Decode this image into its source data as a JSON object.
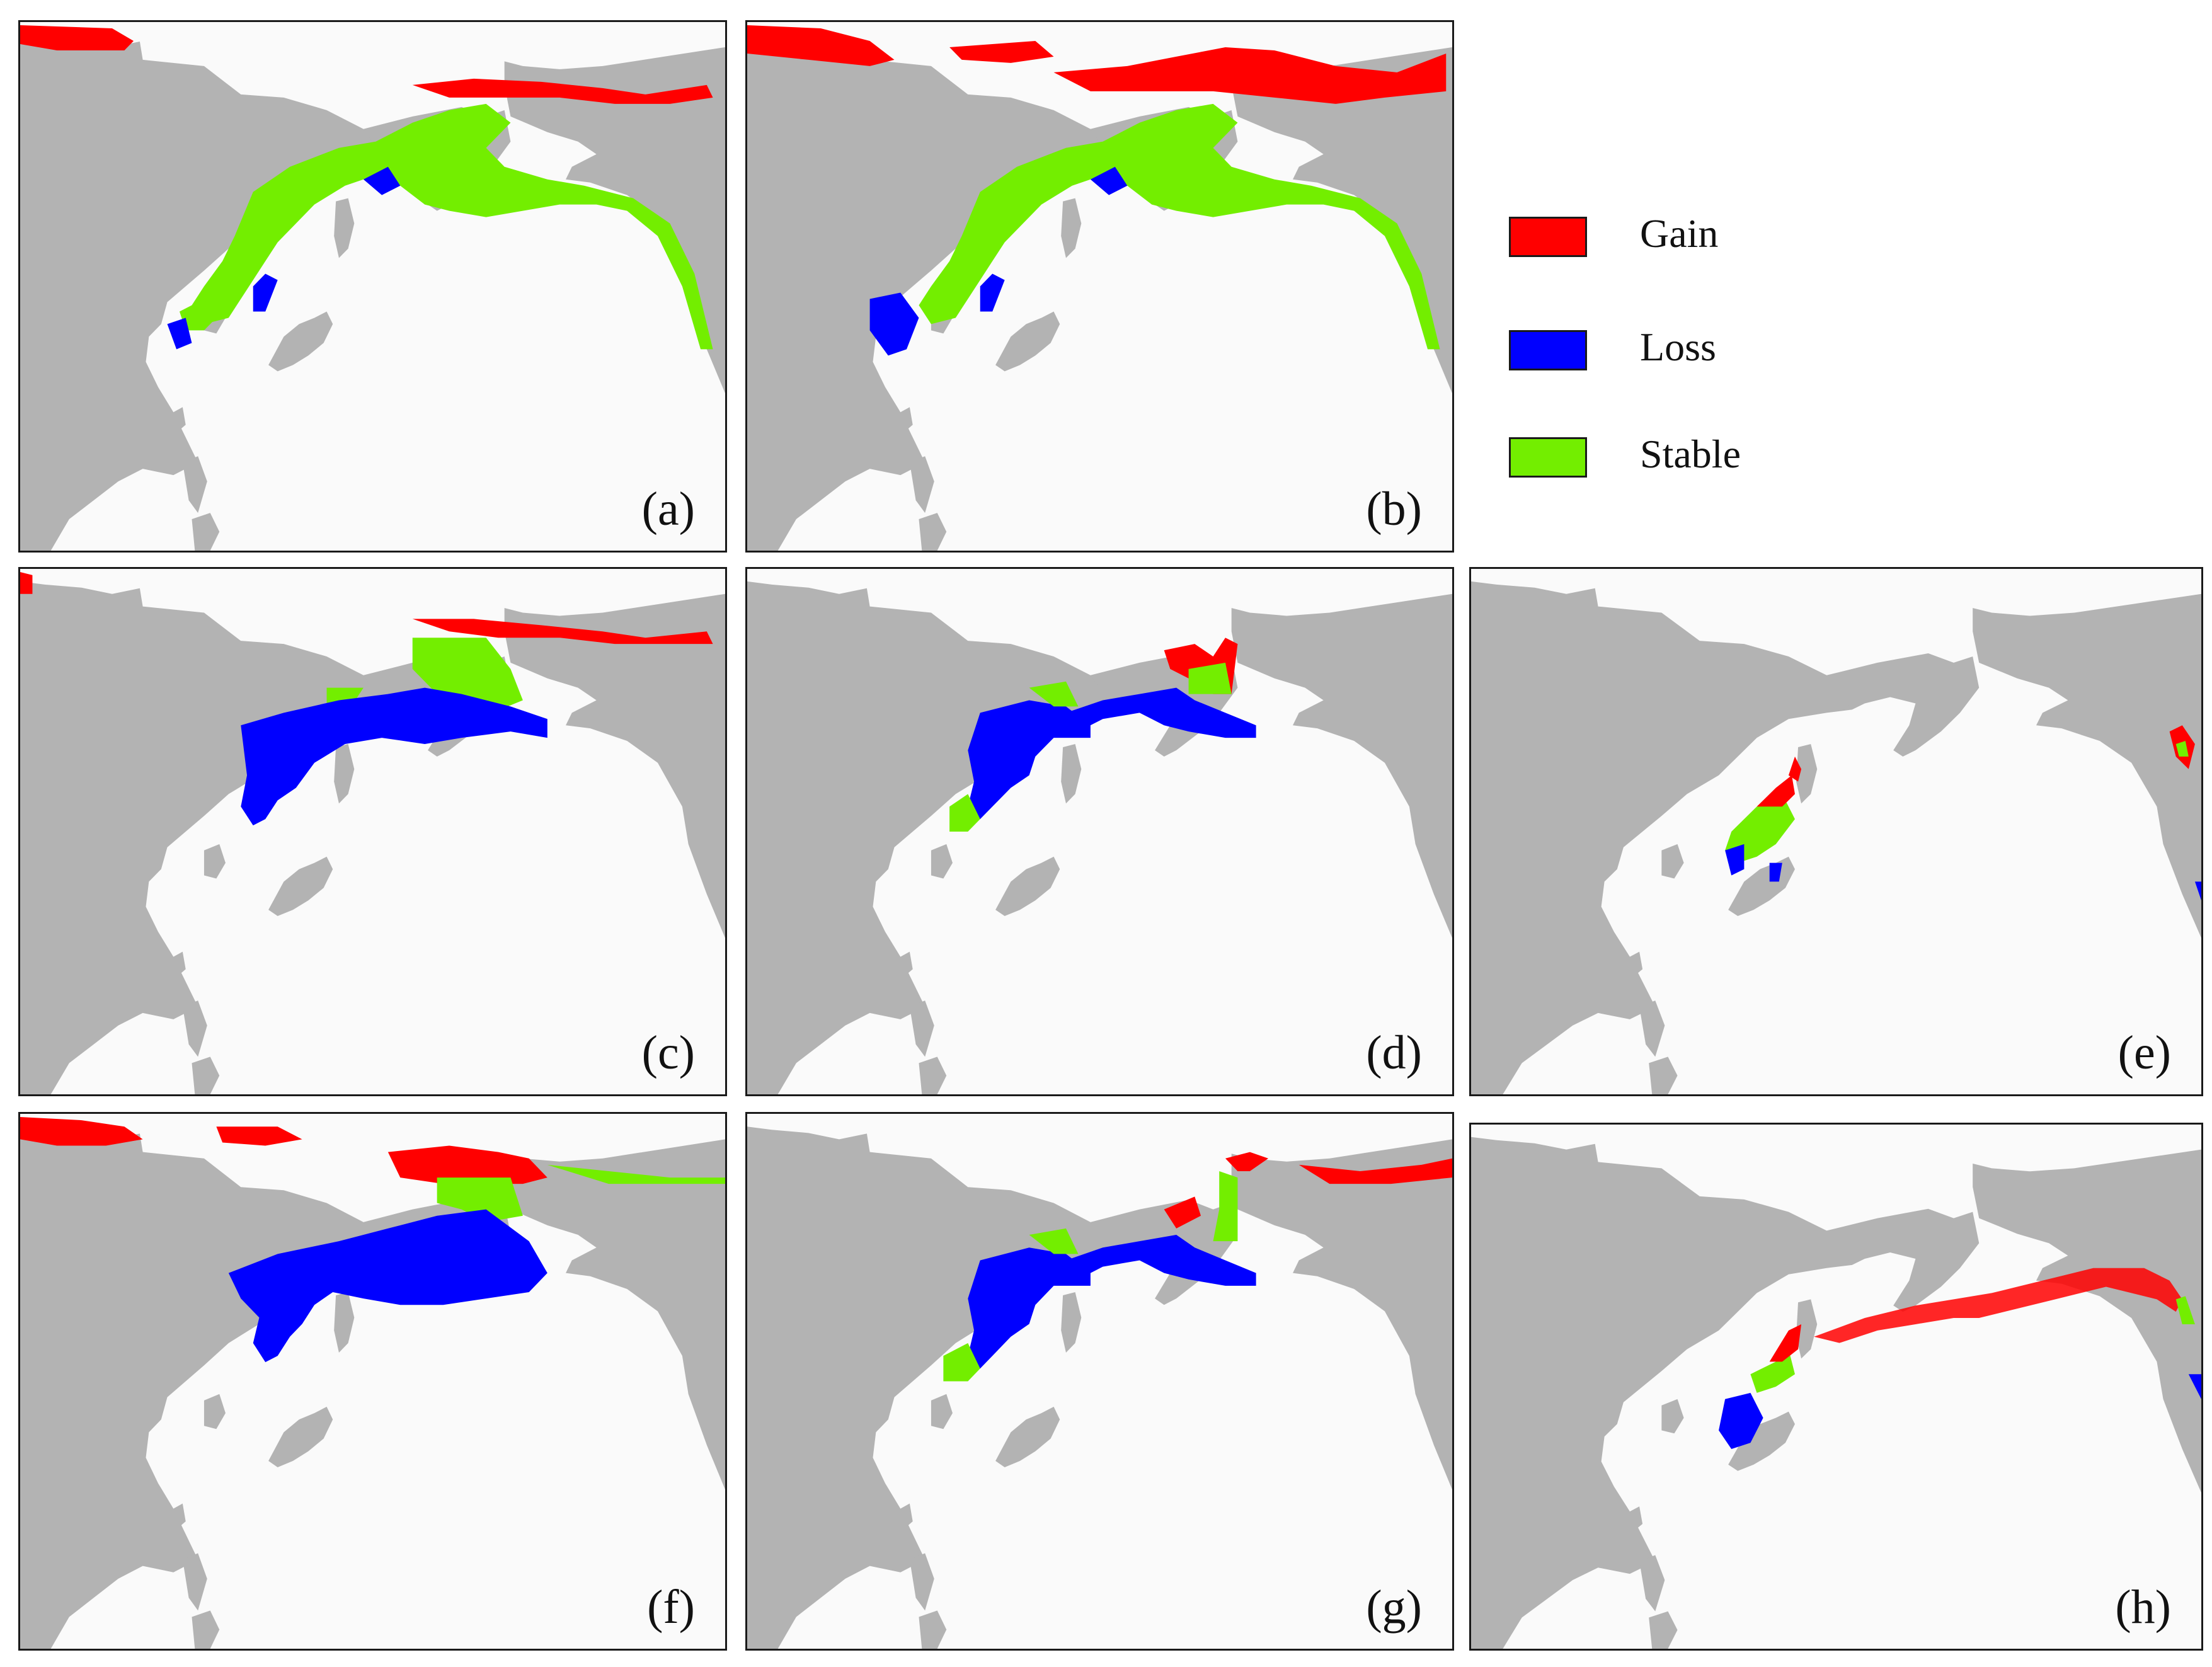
{
  "legend": {
    "items": [
      {
        "label": "Gain",
        "color": "#ff0000"
      },
      {
        "label": "Loss",
        "color": "#0000ff"
      },
      {
        "label": "Stable",
        "color": "#73ee00"
      }
    ]
  },
  "colors": {
    "land": "#b3b3b3",
    "ocean": "#fafafa",
    "border": "#1a1a1a"
  },
  "panels": [
    {
      "label": "(a)"
    },
    {
      "label": "(b)"
    },
    {
      "label": "(c)"
    },
    {
      "label": "(d)"
    },
    {
      "label": "(e)"
    },
    {
      "label": "(f)"
    },
    {
      "label": "(g)"
    },
    {
      "label": "(h)"
    }
  ]
}
